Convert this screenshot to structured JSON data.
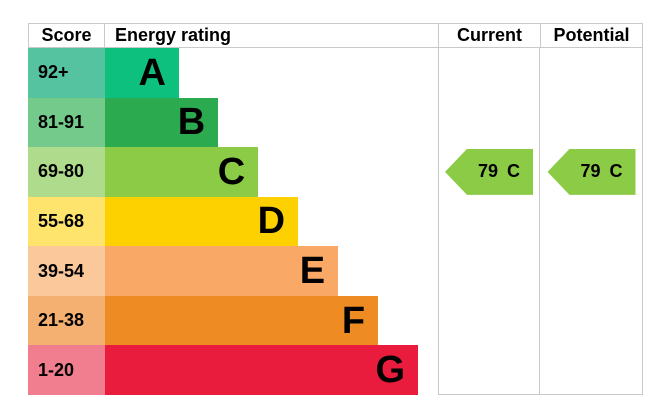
{
  "header": {
    "score": "Score",
    "rating": "Energy rating",
    "current": "Current",
    "potential": "Potential"
  },
  "chart_data": {
    "type": "bar",
    "title": "Energy efficiency rating (EPC) band chart",
    "columns": [
      "Score",
      "Energy rating",
      "Current",
      "Potential"
    ],
    "bands": [
      {
        "letter": "A",
        "score": "92+",
        "band_color": "#0DC07E",
        "score_bg": "#55C3A0",
        "width_pct": 22.2
      },
      {
        "letter": "B",
        "score": "81-91",
        "band_color": "#2CAA4F",
        "score_bg": "#74CA8B",
        "width_pct": 34.0
      },
      {
        "letter": "C",
        "score": "69-80",
        "band_color": "#8CCB46",
        "score_bg": "#AFDC8C",
        "width_pct": 46.0
      },
      {
        "letter": "D",
        "score": "55-68",
        "band_color": "#FDD000",
        "score_bg": "#FEE46C",
        "width_pct": 58.0
      },
      {
        "letter": "E",
        "score": "39-54",
        "band_color": "#F9A965",
        "score_bg": "#FBC89C",
        "width_pct": 70.0
      },
      {
        "letter": "F",
        "score": "21-38",
        "band_color": "#EE8B23",
        "score_bg": "#F4B071",
        "width_pct": 82.0
      },
      {
        "letter": "G",
        "score": "1-20",
        "band_color": "#E91C3D",
        "score_bg": "#F17E8E",
        "width_pct": 94.0
      }
    ],
    "current": {
      "value": "79",
      "band": "C",
      "arrow_color": "#8CCB46"
    },
    "potential": {
      "value": "79",
      "band": "C",
      "arrow_color": "#8CCB46"
    },
    "layout": {
      "legend": "none",
      "grid": "off",
      "border_color": "#c9c9c9"
    }
  }
}
